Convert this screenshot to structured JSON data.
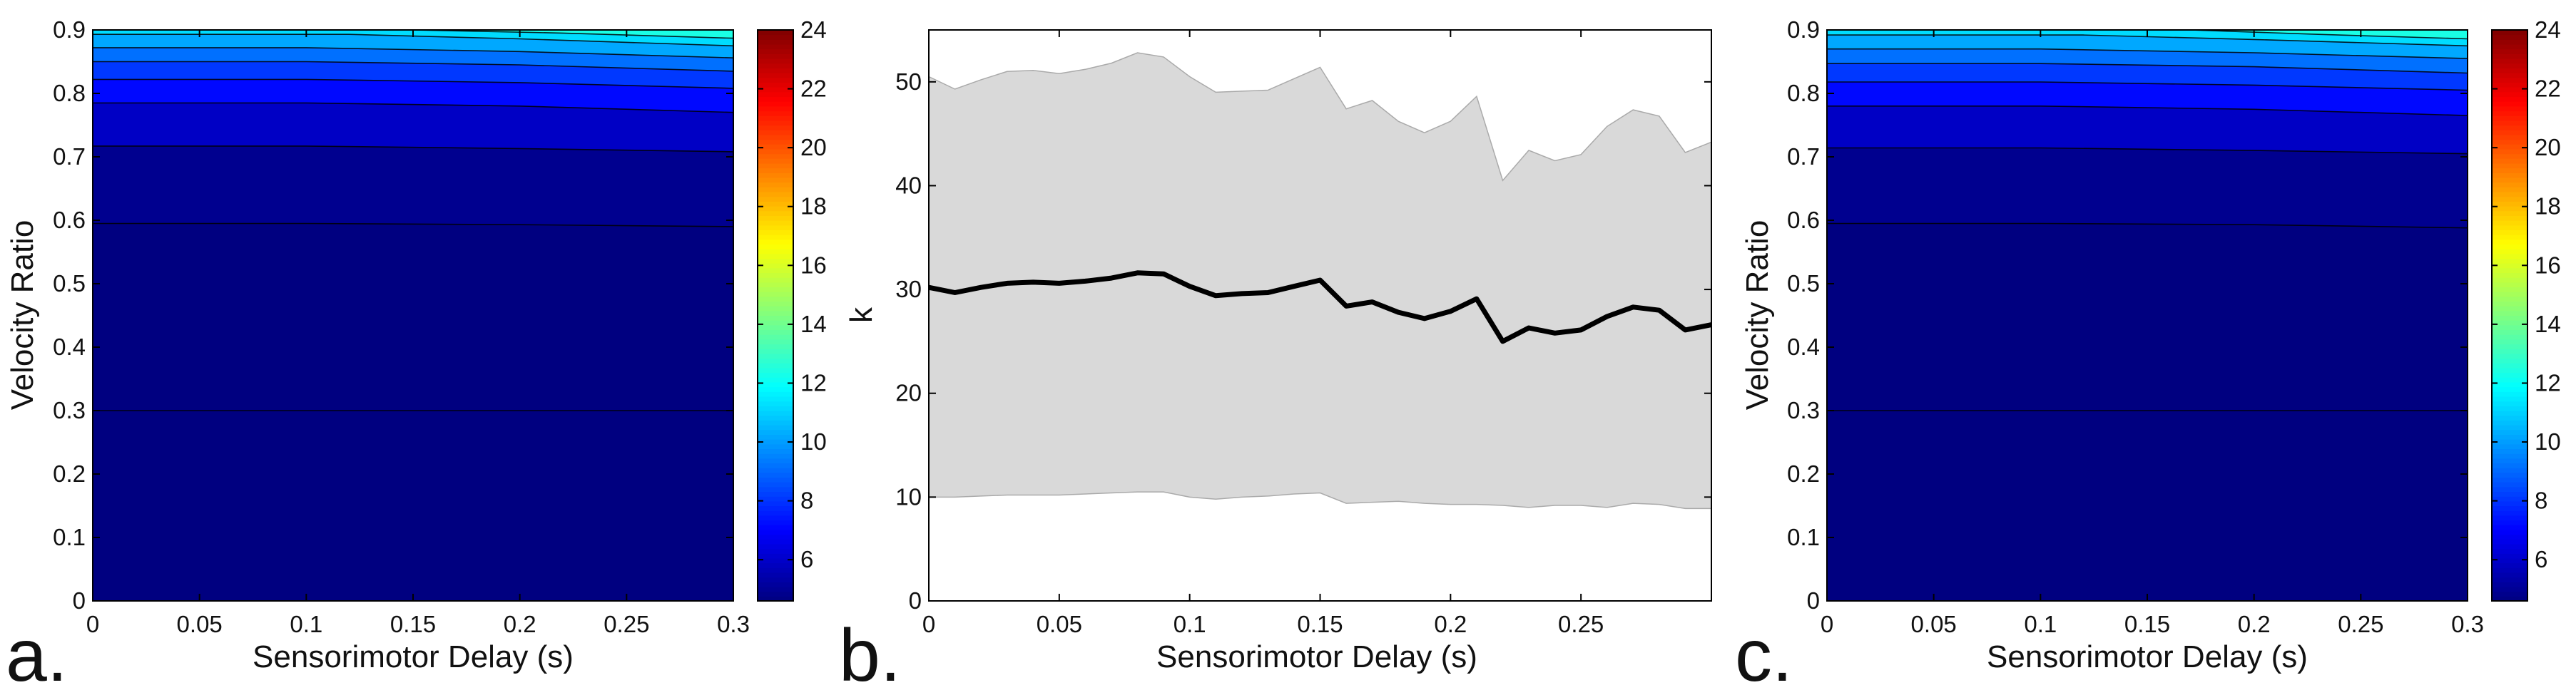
{
  "chart_data": [
    {
      "panel_label": "a.",
      "type": "heatmap",
      "subtype": "filled-contour",
      "xlabel": "Sensorimotor Delay (s)",
      "ylabel": "Velocity Ratio",
      "xlim": [
        0,
        0.3
      ],
      "ylim": [
        0,
        0.9
      ],
      "xticks": [
        "0",
        "0.05",
        "0.1",
        "0.15",
        "0.2",
        "0.25",
        "0.3"
      ],
      "yticks": [
        "0",
        "0.1",
        "0.2",
        "0.3",
        "0.4",
        "0.5",
        "0.6",
        "0.7",
        "0.8",
        "0.9"
      ],
      "colorbar": {
        "colormap": "jet",
        "range": [
          4.6,
          24
        ],
        "ticks": [
          "6",
          "8",
          "10",
          "12",
          "14",
          "16",
          "18",
          "20",
          "22",
          "24"
        ]
      },
      "contour_levels": [
        {
          "level": 5.0,
          "color": "#000080",
          "boundary": [
            [
              0,
              0.3
            ],
            [
              0.3,
              0.3
            ]
          ]
        },
        {
          "level": 5.5,
          "color": "#00008f",
          "boundary": [
            [
              0,
              0.595
            ],
            [
              0.1,
              0.595
            ],
            [
              0.2,
              0.593
            ],
            [
              0.3,
              0.59
            ]
          ]
        },
        {
          "level": 6.5,
          "color": "#0000c5",
          "boundary": [
            [
              0,
              0.717
            ],
            [
              0.1,
              0.717
            ],
            [
              0.2,
              0.713
            ],
            [
              0.3,
              0.708
            ]
          ]
        },
        {
          "level": 7.5,
          "color": "#0008ff",
          "boundary": [
            [
              0,
              0.785
            ],
            [
              0.1,
              0.785
            ],
            [
              0.2,
              0.78
            ],
            [
              0.3,
              0.77
            ]
          ]
        },
        {
          "level": 8.5,
          "color": "#0038ff",
          "boundary": [
            [
              0,
              0.822
            ],
            [
              0.1,
              0.822
            ],
            [
              0.2,
              0.817
            ],
            [
              0.3,
              0.808
            ]
          ]
        },
        {
          "level": 9.5,
          "color": "#0070ff",
          "boundary": [
            [
              0,
              0.85
            ],
            [
              0.1,
              0.85
            ],
            [
              0.2,
              0.845
            ],
            [
              0.3,
              0.835
            ]
          ]
        },
        {
          "level": 10.5,
          "color": "#00a8ff",
          "boundary": [
            [
              0,
              0.872
            ],
            [
              0.1,
              0.872
            ],
            [
              0.2,
              0.866
            ],
            [
              0.3,
              0.856
            ]
          ]
        },
        {
          "level": 11.5,
          "color": "#00dcff",
          "boundary": [
            [
              0,
              0.893
            ],
            [
              0.12,
              0.893
            ],
            [
              0.2,
              0.886
            ],
            [
              0.3,
              0.875
            ]
          ]
        },
        {
          "level": 12.5,
          "color": "#1affe5",
          "boundary": [
            [
              0.15,
              0.9
            ],
            [
              0.22,
              0.895
            ],
            [
              0.3,
              0.887
            ]
          ]
        }
      ]
    },
    {
      "panel_label": "b.",
      "type": "line",
      "subtype": "line-with-shaded-band",
      "xlabel": "Sensorimotor Delay (s)",
      "ylabel": "k",
      "xlim": [
        0,
        0.3
      ],
      "ylim": [
        0,
        55
      ],
      "xticks": [
        "0",
        "0.05",
        "0.1",
        "0.15",
        "0.2",
        "0.25"
      ],
      "yticks": [
        "0",
        "10",
        "20",
        "30",
        "40",
        "50"
      ],
      "grid": false,
      "x": [
        0,
        0.01,
        0.02,
        0.03,
        0.04,
        0.05,
        0.06,
        0.07,
        0.08,
        0.09,
        0.1,
        0.11,
        0.12,
        0.13,
        0.14,
        0.15,
        0.16,
        0.17,
        0.18,
        0.19,
        0.2,
        0.21,
        0.22,
        0.23,
        0.24,
        0.25,
        0.26,
        0.27,
        0.28,
        0.29,
        0.3
      ],
      "series": [
        {
          "color": "#000000",
          "role": "mean",
          "values": [
            30.2,
            29.7,
            30.2,
            30.6,
            30.7,
            30.6,
            30.8,
            31.1,
            31.6,
            31.5,
            30.3,
            29.4,
            29.6,
            29.7,
            30.3,
            30.9,
            28.4,
            28.8,
            27.8,
            27.2,
            27.9,
            29.1,
            25.0,
            26.3,
            25.8,
            26.1,
            27.4,
            28.3,
            28.0,
            26.1,
            26.6
          ]
        },
        {
          "color": "#d9d9d9",
          "role": "band-upper",
          "values": [
            50.5,
            49.3,
            50.2,
            51.0,
            51.1,
            50.8,
            51.2,
            51.8,
            52.8,
            52.4,
            50.5,
            49.0,
            49.1,
            49.2,
            50.3,
            51.4,
            47.4,
            48.2,
            46.2,
            45.1,
            46.2,
            48.6,
            40.5,
            43.4,
            42.4,
            43.0,
            45.7,
            47.3,
            46.7,
            43.2,
            44.2
          ]
        },
        {
          "color": "#d9d9d9",
          "role": "band-lower",
          "values": [
            10.0,
            10.0,
            10.1,
            10.2,
            10.2,
            10.2,
            10.3,
            10.4,
            10.5,
            10.5,
            10.0,
            9.8,
            10.0,
            10.1,
            10.3,
            10.4,
            9.4,
            9.5,
            9.6,
            9.4,
            9.3,
            9.3,
            9.2,
            9.0,
            9.2,
            9.2,
            9.0,
            9.4,
            9.3,
            8.9,
            8.9
          ]
        }
      ]
    },
    {
      "panel_label": "c.",
      "type": "heatmap",
      "subtype": "filled-contour",
      "xlabel": "Sensorimotor Delay (s)",
      "ylabel": "Velocity Ratio",
      "xlim": [
        0,
        0.3
      ],
      "ylim": [
        0,
        0.9
      ],
      "xticks": [
        "0",
        "0.05",
        "0.1",
        "0.15",
        "0.2",
        "0.25",
        "0.3"
      ],
      "yticks": [
        "0",
        "0.1",
        "0.2",
        "0.3",
        "0.4",
        "0.5",
        "0.6",
        "0.7",
        "0.8",
        "0.9"
      ],
      "colorbar": {
        "colormap": "jet",
        "range": [
          4.6,
          24
        ],
        "ticks": [
          "6",
          "8",
          "10",
          "12",
          "14",
          "16",
          "18",
          "20",
          "22",
          "24"
        ]
      },
      "contour_levels": [
        {
          "level": 5.0,
          "color": "#000080",
          "boundary": [
            [
              0,
              0.3
            ],
            [
              0.3,
              0.3
            ]
          ]
        },
        {
          "level": 5.5,
          "color": "#00008f",
          "boundary": [
            [
              0,
              0.595
            ],
            [
              0.1,
              0.595
            ],
            [
              0.2,
              0.593
            ],
            [
              0.3,
              0.588
            ]
          ]
        },
        {
          "level": 6.5,
          "color": "#0000c5",
          "boundary": [
            [
              0,
              0.714
            ],
            [
              0.1,
              0.714
            ],
            [
              0.2,
              0.71
            ],
            [
              0.3,
              0.705
            ]
          ]
        },
        {
          "level": 7.5,
          "color": "#0008ff",
          "boundary": [
            [
              0,
              0.78
            ],
            [
              0.1,
              0.78
            ],
            [
              0.2,
              0.775
            ],
            [
              0.3,
              0.765
            ]
          ]
        },
        {
          "level": 8.5,
          "color": "#0038ff",
          "boundary": [
            [
              0,
              0.818
            ],
            [
              0.1,
              0.818
            ],
            [
              0.2,
              0.813
            ],
            [
              0.3,
              0.805
            ]
          ]
        },
        {
          "level": 9.5,
          "color": "#0070ff",
          "boundary": [
            [
              0,
              0.847
            ],
            [
              0.1,
              0.847
            ],
            [
              0.2,
              0.842
            ],
            [
              0.3,
              0.832
            ]
          ]
        },
        {
          "level": 10.5,
          "color": "#00a8ff",
          "boundary": [
            [
              0,
              0.87
            ],
            [
              0.1,
              0.87
            ],
            [
              0.2,
              0.864
            ],
            [
              0.3,
              0.855
            ]
          ]
        },
        {
          "level": 11.5,
          "color": "#00dcff",
          "boundary": [
            [
              0,
              0.892
            ],
            [
              0.12,
              0.892
            ],
            [
              0.2,
              0.885
            ],
            [
              0.3,
              0.875
            ]
          ]
        },
        {
          "level": 12.5,
          "color": "#1affe5",
          "boundary": [
            [
              0.17,
              0.9
            ],
            [
              0.23,
              0.893
            ],
            [
              0.3,
              0.886
            ]
          ]
        }
      ]
    }
  ]
}
